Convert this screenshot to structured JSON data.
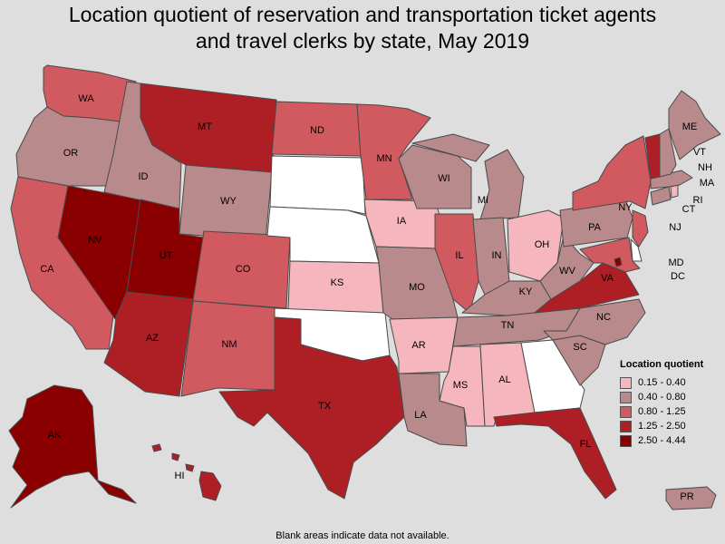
{
  "title": {
    "line1": "Location quotient of reservation and transportation ticket agents",
    "line2": "and travel clerks by state, May 2019"
  },
  "legend": {
    "title": "Location quotient",
    "bins": [
      {
        "label": "0.15 - 0.40",
        "color": "#f6b6bd"
      },
      {
        "label": "0.40 - 0.80",
        "color": "#b98a8c"
      },
      {
        "label": "0.80 - 1.25",
        "color": "#d05a5f"
      },
      {
        "label": "1.25 - 2.50",
        "color": "#ad1f24"
      },
      {
        "label": "2.50 - 4.44",
        "color": "#8a0000"
      }
    ],
    "no_data_color": "#ffffff"
  },
  "footnote": "Blank areas indicate data not available.",
  "states": {
    "WA": {
      "label": "WA",
      "bin": 2
    },
    "OR": {
      "label": "OR",
      "bin": 1
    },
    "CA": {
      "label": "CA",
      "bin": 2
    },
    "NV": {
      "label": "NV",
      "bin": 4
    },
    "ID": {
      "label": "ID",
      "bin": 1
    },
    "MT": {
      "label": "MT",
      "bin": 3
    },
    "WY": {
      "label": "WY",
      "bin": 1
    },
    "UT": {
      "label": "UT",
      "bin": 4
    },
    "AZ": {
      "label": "AZ",
      "bin": 3
    },
    "CO": {
      "label": "CO",
      "bin": 2
    },
    "NM": {
      "label": "NM",
      "bin": 2
    },
    "ND": {
      "label": "ND",
      "bin": 2
    },
    "SD": {
      "label": "",
      "bin": null
    },
    "NE": {
      "label": "",
      "bin": null
    },
    "KS": {
      "label": "KS",
      "bin": 0
    },
    "OK": {
      "label": "",
      "bin": null
    },
    "TX": {
      "label": "TX",
      "bin": 3
    },
    "MN": {
      "label": "MN",
      "bin": 2
    },
    "IA": {
      "label": "IA",
      "bin": 0
    },
    "MO": {
      "label": "MO",
      "bin": 1
    },
    "AR": {
      "label": "AR",
      "bin": 0
    },
    "LA": {
      "label": "LA",
      "bin": 1
    },
    "WI": {
      "label": "WI",
      "bin": 1
    },
    "IL": {
      "label": "IL",
      "bin": 2
    },
    "MI": {
      "label": "MI",
      "bin": 1
    },
    "IN": {
      "label": "IN",
      "bin": 1
    },
    "OH": {
      "label": "OH",
      "bin": 0
    },
    "KY": {
      "label": "KY",
      "bin": 1
    },
    "TN": {
      "label": "TN",
      "bin": 1
    },
    "MS": {
      "label": "MS",
      "bin": 0
    },
    "AL": {
      "label": "AL",
      "bin": 0
    },
    "GA": {
      "label": "",
      "bin": null
    },
    "FL": {
      "label": "FL",
      "bin": 3
    },
    "SC": {
      "label": "SC",
      "bin": 1
    },
    "NC": {
      "label": "NC",
      "bin": 1
    },
    "VA": {
      "label": "VA",
      "bin": 3
    },
    "WV": {
      "label": "WV",
      "bin": 1
    },
    "PA": {
      "label": "PA",
      "bin": 1
    },
    "NY": {
      "label": "NY",
      "bin": 2
    },
    "NJ": {
      "label": "NJ",
      "bin": 2
    },
    "DE": {
      "label": "",
      "bin": null
    },
    "MD": {
      "label": "MD",
      "bin": 2
    },
    "DC": {
      "label": "DC",
      "bin": 4
    },
    "CT": {
      "label": "CT",
      "bin": 1
    },
    "RI": {
      "label": "RI",
      "bin": 0
    },
    "MA": {
      "label": "MA",
      "bin": 1
    },
    "VT": {
      "label": "VT",
      "bin": 3
    },
    "NH": {
      "label": "NH",
      "bin": 1
    },
    "ME": {
      "label": "ME",
      "bin": 1
    },
    "AK": {
      "label": "AK",
      "bin": 4
    },
    "HI": {
      "label": "HI",
      "bin": 3
    },
    "PR": {
      "label": "PR",
      "bin": 1
    }
  }
}
